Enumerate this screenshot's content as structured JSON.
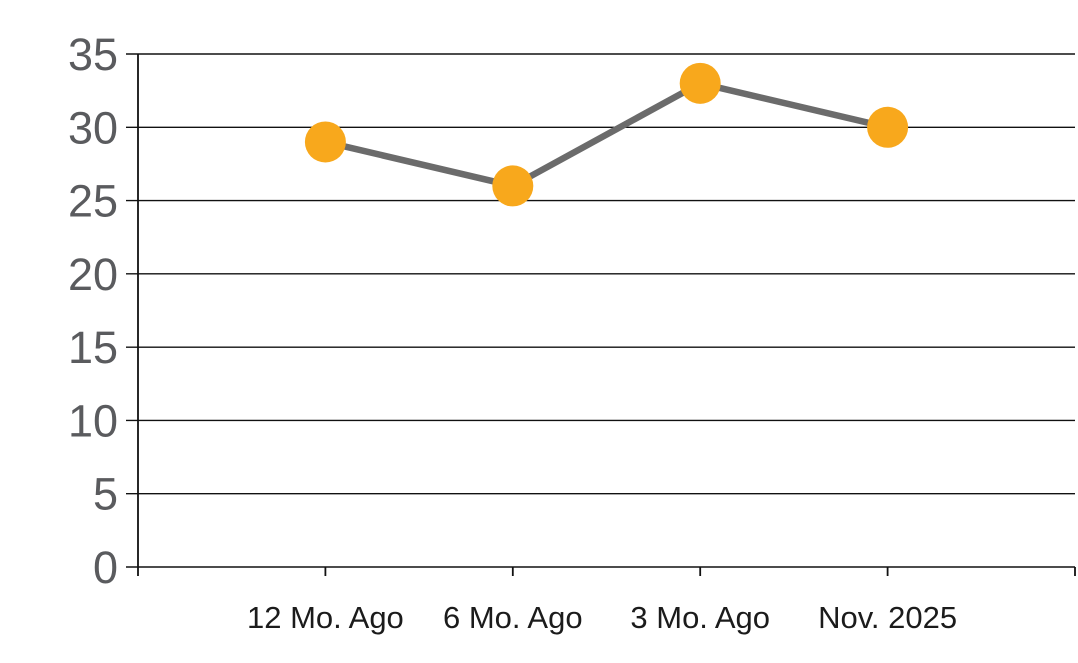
{
  "chart_data": {
    "type": "line",
    "title": "",
    "xlabel": "",
    "ylabel": "",
    "categories": [
      "12 Mo. Ago",
      "6 Mo. Ago",
      "3 Mo. Ago",
      "Nov. 2025"
    ],
    "series": [
      {
        "name": "values",
        "values": [
          29,
          26,
          33,
          30
        ]
      }
    ],
    "ylim": [
      0,
      35
    ],
    "yticks": [
      0,
      5,
      10,
      15,
      20,
      25,
      30,
      35
    ],
    "grid": true,
    "legend": false,
    "marker_style": "filled-circle",
    "colors": {
      "background": "#FFFFFF",
      "marker": "#F8A81C",
      "line": "#6B6B6B",
      "grid": "#111111",
      "axis": "#111111",
      "y_label": "#5A5B5E",
      "x_label": "#1B1B1B"
    }
  }
}
